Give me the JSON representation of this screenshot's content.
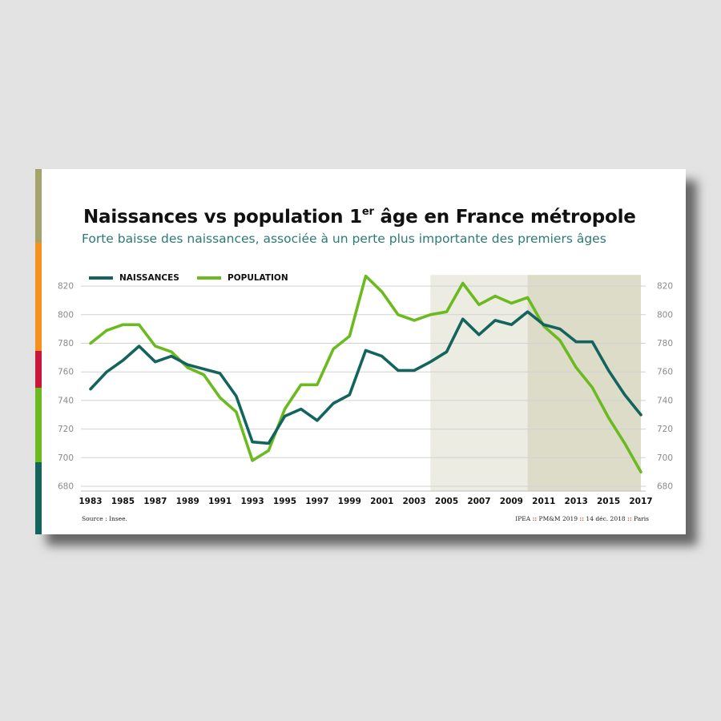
{
  "header": {
    "title_main": "Naissances vs population 1",
    "title_sup": "er",
    "title_rest": " âge en France métropole",
    "subtitle": "Forte baisse des naissances, associée à un perte plus importante des premiers âges"
  },
  "footer": {
    "source": "Source : Insee.",
    "credit_org": "IPEA",
    "credit_event": "PM&M 2019",
    "credit_date": "14 déc. 2018",
    "credit_city": "Paris",
    "separator": "::"
  },
  "colors": {
    "naissances": "#14645e",
    "population": "#6aba20",
    "shade_light": "#ecece2",
    "shade_dark": "#dcdcc9",
    "stripes": [
      "#a3a36b",
      "#f5921e",
      "#c8163c",
      "#6aba20",
      "#14645e"
    ]
  },
  "chart_data": {
    "type": "line",
    "x": [
      1983,
      1984,
      1985,
      1986,
      1987,
      1988,
      1989,
      1990,
      1991,
      1992,
      1993,
      1994,
      1995,
      1996,
      1997,
      1998,
      1999,
      2000,
      2001,
      2002,
      2003,
      2004,
      2005,
      2006,
      2007,
      2008,
      2009,
      2010,
      2011,
      2012,
      2013,
      2014,
      2015,
      2016,
      2017
    ],
    "xticks": [
      "1983",
      "1985",
      "1987",
      "1989",
      "1991",
      "1993",
      "1995",
      "1997",
      "1999",
      "2001",
      "2003",
      "2005",
      "2007",
      "2009",
      "2011",
      "2013",
      "2015",
      "2017"
    ],
    "yticks": [
      "820",
      "800",
      "780",
      "760",
      "740",
      "720",
      "700",
      "680"
    ],
    "ylim": [
      680,
      830
    ],
    "grid": true,
    "legend": "top-left",
    "shaded_ranges": [
      [
        2004,
        2010
      ],
      [
        2010,
        2017
      ]
    ],
    "series": [
      {
        "name": "NAISSANCES",
        "values": [
          748,
          760,
          768,
          778,
          767,
          771,
          765,
          762,
          759,
          743,
          711,
          710,
          729,
          734,
          726,
          738,
          744,
          775,
          771,
          761,
          761,
          767,
          774,
          797,
          786,
          796,
          793,
          802,
          793,
          790,
          781,
          781,
          761,
          744,
          730
        ]
      },
      {
        "name": "POPULATION",
        "values": [
          780,
          789,
          793,
          793,
          778,
          774,
          763,
          758,
          742,
          732,
          698,
          705,
          734,
          751,
          751,
          776,
          785,
          827,
          816,
          800,
          796,
          800,
          802,
          822,
          807,
          813,
          808,
          812,
          792,
          782,
          763,
          749,
          728,
          710,
          690
        ]
      }
    ]
  }
}
